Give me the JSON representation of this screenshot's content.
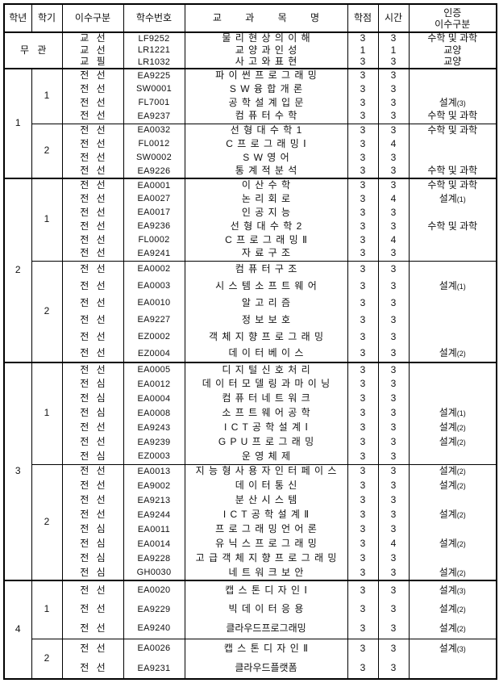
{
  "header": {
    "year": "학년",
    "semester": "학기",
    "category": "이수구분",
    "code": "학수번호",
    "title": "교 과 목 명",
    "credits": "학점",
    "hours": "시간",
    "cert_line1": "인증",
    "cert_line2": "이수구분"
  },
  "table": {
    "groups": [
      {
        "year": "무 관",
        "merged": true,
        "semesters": [
          {
            "label": "",
            "courses": [
              {
                "category": "교 선",
                "code": "LF9252",
                "title": "물 리 현 상 의 이 해",
                "credits": "3",
                "hours": "3",
                "cert": "수학 및 과학"
              },
              {
                "category": "교 선",
                "code": "LR1221",
                "title": "교 양 과 인 성",
                "credits": "1",
                "hours": "1",
                "cert": "교양"
              },
              {
                "category": "교 필",
                "code": "LR1032",
                "title": "사 고 와 표 현",
                "credits": "3",
                "hours": "3",
                "cert": "교양"
              }
            ]
          }
        ]
      },
      {
        "year": "1",
        "merged": false,
        "semesters": [
          {
            "label": "1",
            "courses": [
              {
                "category": "전 선",
                "code": "EA9225",
                "title": "파 이 썬 프 로 그 래 밍",
                "credits": "3",
                "hours": "3",
                "cert": ""
              },
              {
                "category": "전 선",
                "code": "SW0001",
                "title": "S W 융 합 개 론",
                "credits": "3",
                "hours": "3",
                "cert": ""
              },
              {
                "category": "전 선",
                "code": "FL7001",
                "title": "공 학 설 계 입 문",
                "credits": "3",
                "hours": "3",
                "cert": "설계(3)"
              },
              {
                "category": "전 선",
                "code": "EA9237",
                "title": "컴 퓨 터 수 학",
                "credits": "3",
                "hours": "3",
                "cert": "수학 및 과학"
              }
            ]
          },
          {
            "label": "2",
            "courses": [
              {
                "category": "전 선",
                "code": "EA0032",
                "title": "선 형 대 수 학 1",
                "credits": "3",
                "hours": "3",
                "cert": "수학 및 과학"
              },
              {
                "category": "전 선",
                "code": "FL0012",
                "title": "C 프 로 그 래 밍 Ⅰ",
                "credits": "3",
                "hours": "4",
                "cert": ""
              },
              {
                "category": "전 선",
                "code": "SW0002",
                "title": "S W 영 어",
                "credits": "3",
                "hours": "3",
                "cert": ""
              },
              {
                "category": "전 선",
                "code": "EA9226",
                "title": "통 계 적 분 석",
                "credits": "3",
                "hours": "3",
                "cert": "수학 및 과학"
              }
            ]
          }
        ]
      },
      {
        "year": "2",
        "merged": false,
        "semesters": [
          {
            "label": "1",
            "courses": [
              {
                "category": "전 선",
                "code": "EA0001",
                "title": "이 산 수 학",
                "credits": "3",
                "hours": "3",
                "cert": "수학 및 과학"
              },
              {
                "category": "전 선",
                "code": "EA0027",
                "title": "논 리 회 로",
                "credits": "3",
                "hours": "4",
                "cert": "설계(1)"
              },
              {
                "category": "전 선",
                "code": "EA0017",
                "title": "인 공 지 능",
                "credits": "3",
                "hours": "3",
                "cert": ""
              },
              {
                "category": "전 선",
                "code": "EA9236",
                "title": "선 형 대 수 학 2",
                "credits": "3",
                "hours": "3",
                "cert": "수학 및 과학"
              },
              {
                "category": "전 선",
                "code": "FL0002",
                "title": "C 프 로 그 래 밍 Ⅱ",
                "credits": "3",
                "hours": "4",
                "cert": ""
              },
              {
                "category": "전 선",
                "code": "EA9241",
                "title": "자 료 구 조",
                "credits": "3",
                "hours": "3",
                "cert": ""
              }
            ]
          },
          {
            "label": "2",
            "courses": [
              {
                "category": "전 선",
                "code": "EA0002",
                "title": "컴 퓨 터 구 조",
                "credits": "3",
                "hours": "3",
                "cert": ""
              },
              {
                "category": "전 선",
                "code": "EA0003",
                "title": "시 스 템 소 프 트 웨 어",
                "credits": "3",
                "hours": "3",
                "cert": "설계(1)"
              },
              {
                "category": "전 선",
                "code": "EA0010",
                "title": "알 고 리 즘",
                "credits": "3",
                "hours": "3",
                "cert": ""
              },
              {
                "category": "전 선",
                "code": "EA9227",
                "title": "정 보 보 호",
                "credits": "3",
                "hours": "3",
                "cert": ""
              },
              {
                "category": "전 선",
                "code": "EZ0002",
                "title": "객 체 지 향 프 로 그 래 밍",
                "credits": "3",
                "hours": "3",
                "cert": ""
              },
              {
                "category": "전 선",
                "code": "EZ0004",
                "title": "데 이 터 베 이 스",
                "credits": "3",
                "hours": "3",
                "cert": "설계(2)"
              }
            ]
          }
        ]
      },
      {
        "year": "3",
        "merged": false,
        "semesters": [
          {
            "label": "1",
            "courses": [
              {
                "category": "전 선",
                "code": "EA0005",
                "title": "디 지 털 신 호 처 리",
                "credits": "3",
                "hours": "3",
                "cert": ""
              },
              {
                "category": "전 심",
                "code": "EA0012",
                "title": "데 이 터 모 델 링 과 마 이 닝",
                "credits": "3",
                "hours": "3",
                "cert": ""
              },
              {
                "category": "전 심",
                "code": "EA0004",
                "title": "컴 퓨 터 네 트 워 크",
                "credits": "3",
                "hours": "3",
                "cert": ""
              },
              {
                "category": "전 심",
                "code": "EA0008",
                "title": "소 프 트 웨 어 공 학",
                "credits": "3",
                "hours": "3",
                "cert": "설계(1)"
              },
              {
                "category": "전 선",
                "code": "EA9243",
                "title": "I C T 공 학 설 계 Ⅰ",
                "credits": "3",
                "hours": "3",
                "cert": "설계(2)"
              },
              {
                "category": "전 선",
                "code": "EA9239",
                "title": "G P U 프 로 그 래 밍",
                "credits": "3",
                "hours": "3",
                "cert": "설계(2)"
              },
              {
                "category": "전 심",
                "code": "EZ0003",
                "title": "운 영 체 제",
                "credits": "3",
                "hours": "3",
                "cert": ""
              }
            ]
          },
          {
            "label": "2",
            "courses": [
              {
                "category": "전 선",
                "code": "EA0013",
                "title": "지 능 형 사 용 자 인 터 페 이 스",
                "credits": "3",
                "hours": "3",
                "cert": "설계(2)"
              },
              {
                "category": "전 선",
                "code": "EA9002",
                "title": "데 이 터 통 신",
                "credits": "3",
                "hours": "3",
                "cert": "설계(2)"
              },
              {
                "category": "전 선",
                "code": "EA9213",
                "title": "분 산 시 스 템",
                "credits": "3",
                "hours": "3",
                "cert": ""
              },
              {
                "category": "전 선",
                "code": "EA9244",
                "title": "I C T 공 학 설 계 Ⅱ",
                "credits": "3",
                "hours": "3",
                "cert": "설계(2)"
              },
              {
                "category": "전 심",
                "code": "EA0011",
                "title": "프 로 그 래 밍 언 어 론",
                "credits": "3",
                "hours": "3",
                "cert": ""
              },
              {
                "category": "전 심",
                "code": "EA0014",
                "title": "유 닉 스 프 로 그 래 밍",
                "credits": "3",
                "hours": "4",
                "cert": "설계(2)"
              },
              {
                "category": "전 심",
                "code": "EA9228",
                "title": "고 급 객 체 지 향 프 로 그 래 밍",
                "credits": "3",
                "hours": "3",
                "cert": ""
              },
              {
                "category": "전 심",
                "code": "GH0030",
                "title": "네 트 워 크 보 안",
                "credits": "3",
                "hours": "3",
                "cert": "설계(2)"
              }
            ]
          }
        ]
      },
      {
        "year": "4",
        "merged": false,
        "semesters": [
          {
            "label": "1",
            "courses": [
              {
                "category": "전 선",
                "code": "EA0020",
                "title": "캡 스 톤 디 자 인 Ⅰ",
                "credits": "3",
                "hours": "3",
                "cert": "설계(3)"
              },
              {
                "category": "전 선",
                "code": "EA9229",
                "title": "빅 데 이 터 응 용",
                "credits": "3",
                "hours": "3",
                "cert": "설계(2)"
              },
              {
                "category": "전 선",
                "code": "EA9240",
                "title": "클라우드프로그래밍",
                "credits": "3",
                "hours": "3",
                "cert": "설계(2)"
              }
            ]
          },
          {
            "label": "2",
            "courses": [
              {
                "category": "전 선",
                "code": "EA0026",
                "title": "캡 스 톤 디 자 인 Ⅱ",
                "credits": "3",
                "hours": "3",
                "cert": "설계(3)"
              },
              {
                "category": "전 선",
                "code": "EA9231",
                "title": "클라우드플랫폼",
                "credits": "3",
                "hours": "3",
                "cert": ""
              }
            ]
          }
        ]
      }
    ]
  }
}
